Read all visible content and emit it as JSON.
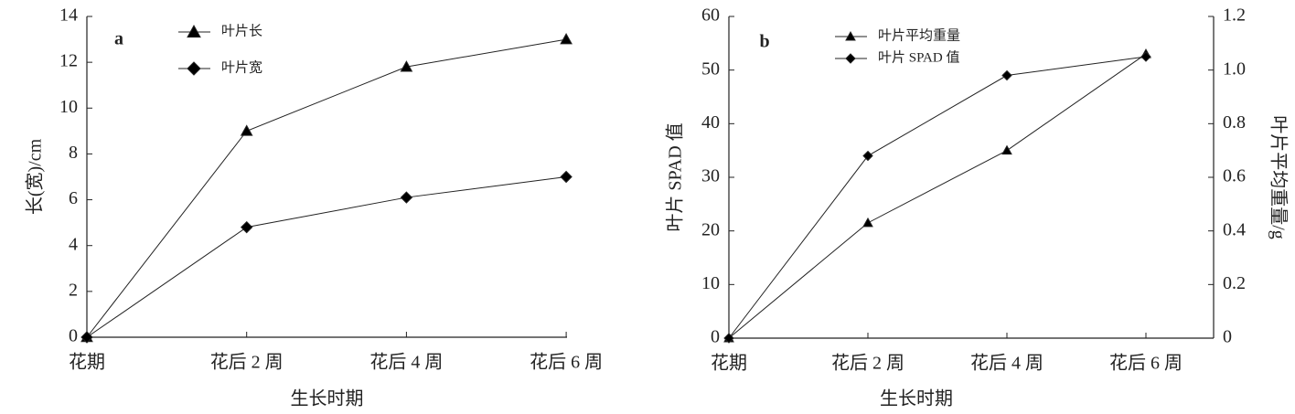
{
  "chart_data": [
    {
      "type": "line",
      "panel_label": "a",
      "categories": [
        "花期",
        "花后 2 周",
        "花后 4 周",
        "花后 6 周"
      ],
      "series": [
        {
          "name": "叶片长",
          "color": "#000000",
          "marker": "triangle",
          "values": [
            0,
            9,
            11.8,
            13
          ]
        },
        {
          "name": "叶片宽",
          "color": "#000000",
          "marker": "diamond",
          "values": [
            0,
            4.8,
            6.1,
            7.0
          ]
        }
      ],
      "ylabel": "长(宽)/cm",
      "xlabel": "生长时期",
      "ylim": [
        0,
        14
      ],
      "yticks": [
        0,
        2,
        4,
        6,
        8,
        10,
        12,
        14
      ]
    },
    {
      "type": "line",
      "panel_label": "b",
      "categories": [
        "花期",
        "花后 2 周",
        "花后 4 周",
        "花后 6 周"
      ],
      "series": [
        {
          "name": "叶片平均重量",
          "color": "#000000",
          "marker": "triangle",
          "axis": "y2",
          "values": [
            0,
            0.43,
            0.7,
            1.06
          ]
        },
        {
          "name": "叶片 SPAD 值",
          "color": "#000000",
          "marker": "diamond",
          "values": [
            0,
            34,
            49,
            52.5
          ]
        }
      ],
      "ylabel": "叶片 SPAD 值",
      "y2label": "叶片平均重量/g",
      "xlabel": "生长时期",
      "ylim": [
        0,
        60
      ],
      "yticks": [
        0,
        10,
        20,
        30,
        40,
        50,
        60
      ],
      "y2lim": [
        0,
        1.2
      ],
      "y2ticks": [
        0,
        0.2,
        0.4,
        0.6,
        0.8,
        {
          "value": 1,
          "label": "1.0"
        },
        1.2
      ]
    }
  ]
}
